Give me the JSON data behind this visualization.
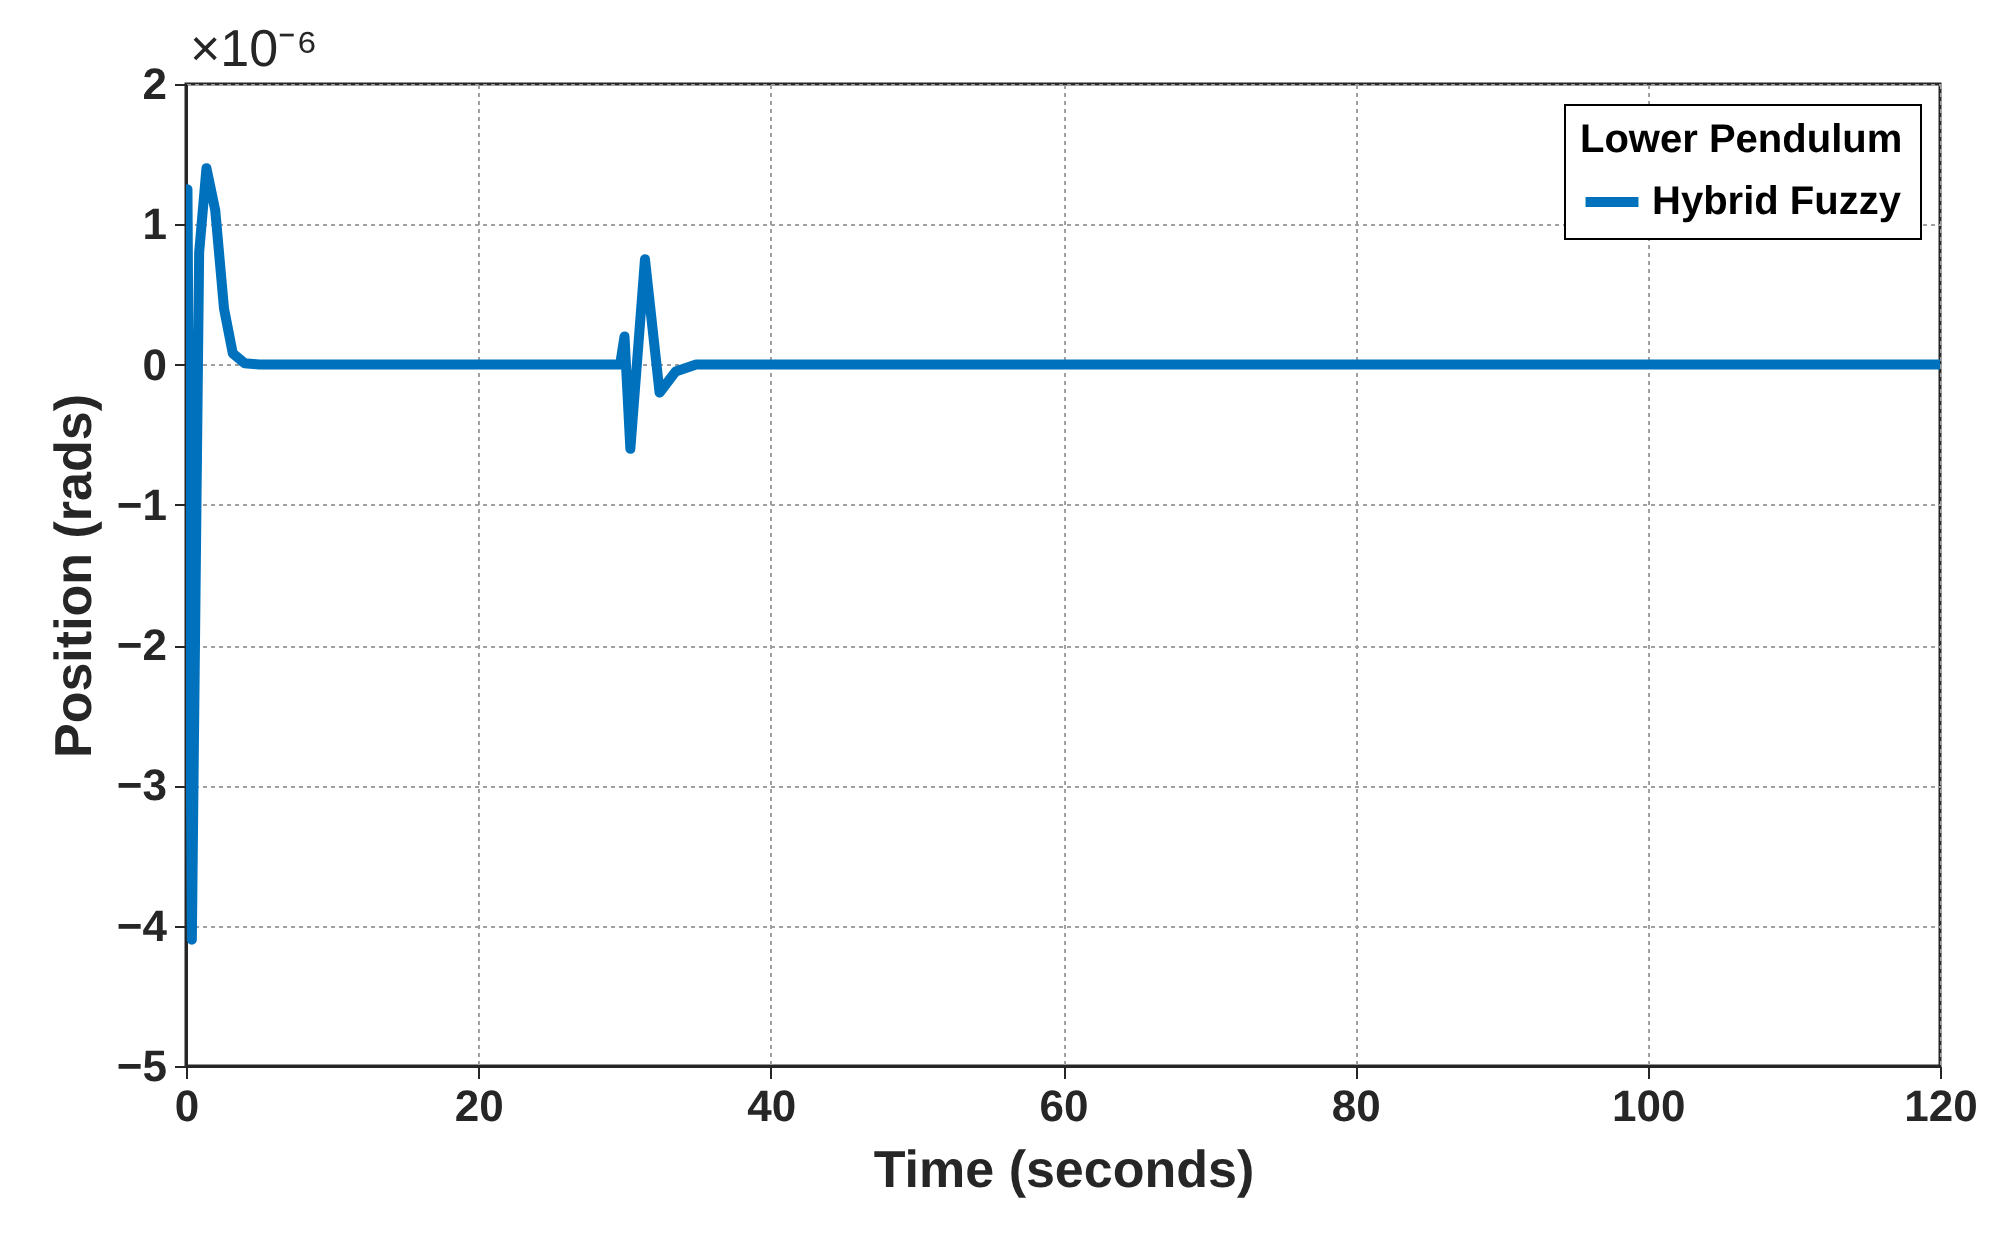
{
  "chart_data": {
    "type": "line",
    "xlabel": "Time (seconds)",
    "ylabel": "Position (rads)",
    "annotations": [
      "×10⁻⁶"
    ],
    "legend_title": "Lower Pendulum",
    "x": [
      0,
      0.1,
      0.4,
      0.9,
      1.4,
      2.0,
      2.6,
      3.2,
      4.0,
      5.0,
      29.7,
      30.0,
      30.4,
      31.4,
      32.4,
      33.5,
      34.9,
      120
    ],
    "series": [
      {
        "name": "Hybrid Fuzzy",
        "color": "#0072bd",
        "values": [
          0,
          1.25,
          -4.1,
          0.8,
          1.4,
          1.1,
          0.4,
          0.08,
          0.01,
          0,
          0,
          0.2,
          -0.6,
          0.75,
          -0.2,
          -0.05,
          0,
          0
        ]
      }
    ],
    "xlim": [
      0,
      120
    ],
    "xticks": [
      0,
      20,
      40,
      60,
      80,
      100,
      120
    ],
    "ylim": [
      -5,
      2
    ],
    "yticks": [
      -5,
      -4,
      -3,
      -2,
      -1,
      0,
      1,
      2
    ],
    "grid": true,
    "legend": "top right",
    "line_style": "solid",
    "marker": "none"
  }
}
